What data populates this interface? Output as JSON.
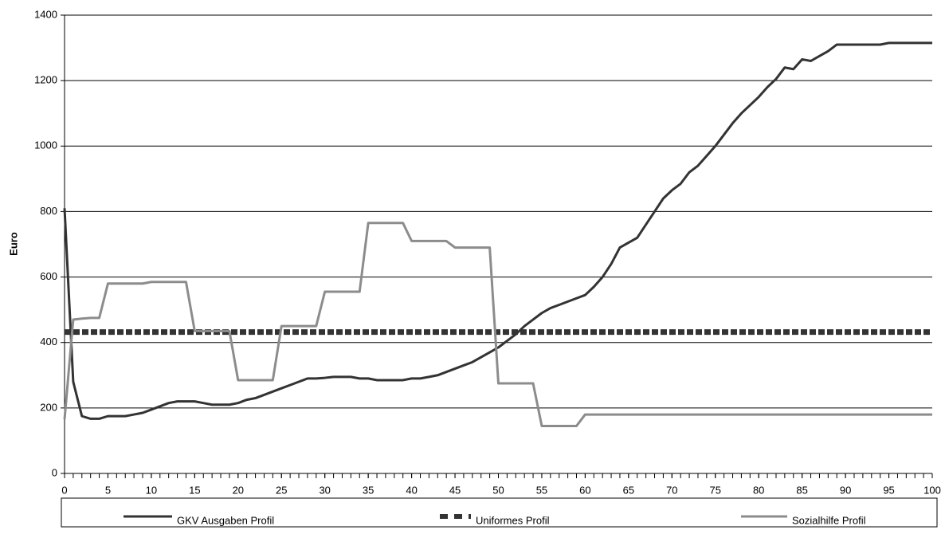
{
  "chart_data": {
    "type": "line",
    "y_label": "Euro",
    "x": [
      0,
      1,
      2,
      3,
      4,
      5,
      6,
      7,
      8,
      9,
      10,
      11,
      12,
      13,
      14,
      15,
      16,
      17,
      18,
      19,
      20,
      21,
      22,
      23,
      24,
      25,
      26,
      27,
      28,
      29,
      30,
      31,
      32,
      33,
      34,
      35,
      36,
      37,
      38,
      39,
      40,
      41,
      42,
      43,
      44,
      45,
      46,
      47,
      48,
      49,
      50,
      51,
      52,
      53,
      54,
      55,
      56,
      57,
      58,
      59,
      60,
      61,
      62,
      63,
      64,
      65,
      66,
      67,
      68,
      69,
      70,
      71,
      72,
      73,
      74,
      75,
      76,
      77,
      78,
      79,
      80,
      81,
      82,
      83,
      84,
      85,
      86,
      87,
      88,
      89,
      90,
      91,
      92,
      93,
      94,
      95,
      96,
      97,
      98,
      99,
      100
    ],
    "series": [
      {
        "name": "GKV Ausgaben Profil",
        "color": "#333333",
        "line_style": "solid",
        "values": [
          810,
          280,
          175,
          167,
          167,
          175,
          175,
          175,
          180,
          185,
          195,
          205,
          215,
          220,
          220,
          220,
          215,
          210,
          210,
          210,
          215,
          225,
          230,
          240,
          250,
          260,
          270,
          280,
          290,
          290,
          292,
          295,
          295,
          295,
          290,
          290,
          285,
          285,
          285,
          285,
          290,
          290,
          295,
          300,
          310,
          320,
          330,
          340,
          355,
          370,
          385,
          405,
          425,
          450,
          470,
          490,
          505,
          515,
          525,
          535,
          545,
          570,
          600,
          640,
          690,
          705,
          720,
          760,
          800,
          840,
          865,
          885,
          920,
          940,
          970,
          1000,
          1035,
          1070,
          1100,
          1125,
          1150,
          1180,
          1205,
          1240,
          1235,
          1265,
          1260,
          1275,
          1290,
          1310,
          1310,
          1310,
          1310,
          1310,
          1310,
          1315,
          1315,
          1315,
          1315,
          1315,
          1315
        ]
      },
      {
        "name": "Uniformes  Profil",
        "color": "#333333",
        "line_style": "dashed",
        "values": [
          432,
          432,
          432,
          432,
          432,
          432,
          432,
          432,
          432,
          432,
          432,
          432,
          432,
          432,
          432,
          432,
          432,
          432,
          432,
          432,
          432,
          432,
          432,
          432,
          432,
          432,
          432,
          432,
          432,
          432,
          432,
          432,
          432,
          432,
          432,
          432,
          432,
          432,
          432,
          432,
          432,
          432,
          432,
          432,
          432,
          432,
          432,
          432,
          432,
          432,
          432,
          432,
          432,
          432,
          432,
          432,
          432,
          432,
          432,
          432,
          432,
          432,
          432,
          432,
          432,
          432,
          432,
          432,
          432,
          432,
          432,
          432,
          432,
          432,
          432,
          432,
          432,
          432,
          432,
          432,
          432,
          432,
          432,
          432,
          432,
          432,
          432,
          432,
          432,
          432,
          432,
          432,
          432,
          432,
          432,
          432,
          432,
          432,
          432,
          432,
          432
        ]
      },
      {
        "name": "Sozialhilfe  Profil",
        "color": "#8c8c8c",
        "line_style": "solid",
        "values": [
          165,
          470,
          473,
          475,
          475,
          580,
          580,
          580,
          580,
          580,
          585,
          585,
          585,
          585,
          585,
          435,
          435,
          435,
          435,
          435,
          285,
          285,
          285,
          285,
          285,
          450,
          450,
          450,
          450,
          450,
          555,
          555,
          555,
          555,
          555,
          765,
          765,
          765,
          765,
          765,
          710,
          710,
          710,
          710,
          710,
          690,
          690,
          690,
          690,
          690,
          275,
          275,
          275,
          275,
          275,
          145,
          145,
          145,
          145,
          145,
          180,
          180,
          180,
          180,
          180,
          180,
          180,
          180,
          180,
          180,
          180,
          180,
          180,
          180,
          180,
          180,
          180,
          180,
          180,
          180,
          180,
          180,
          180,
          180,
          180,
          180,
          180,
          180,
          180,
          180,
          180,
          180,
          180,
          180,
          180,
          180,
          180,
          180,
          180,
          180,
          180
        ]
      }
    ],
    "xlim": [
      0,
      100
    ],
    "xticks": [
      0,
      5,
      10,
      15,
      20,
      25,
      30,
      35,
      40,
      45,
      50,
      55,
      60,
      65,
      70,
      75,
      80,
      85,
      90,
      95,
      100
    ],
    "ylim": [
      0,
      1400
    ],
    "yticks": [
      0,
      200,
      400,
      600,
      800,
      1000,
      1200,
      1400
    ],
    "grid": true,
    "legend": "bottom"
  }
}
